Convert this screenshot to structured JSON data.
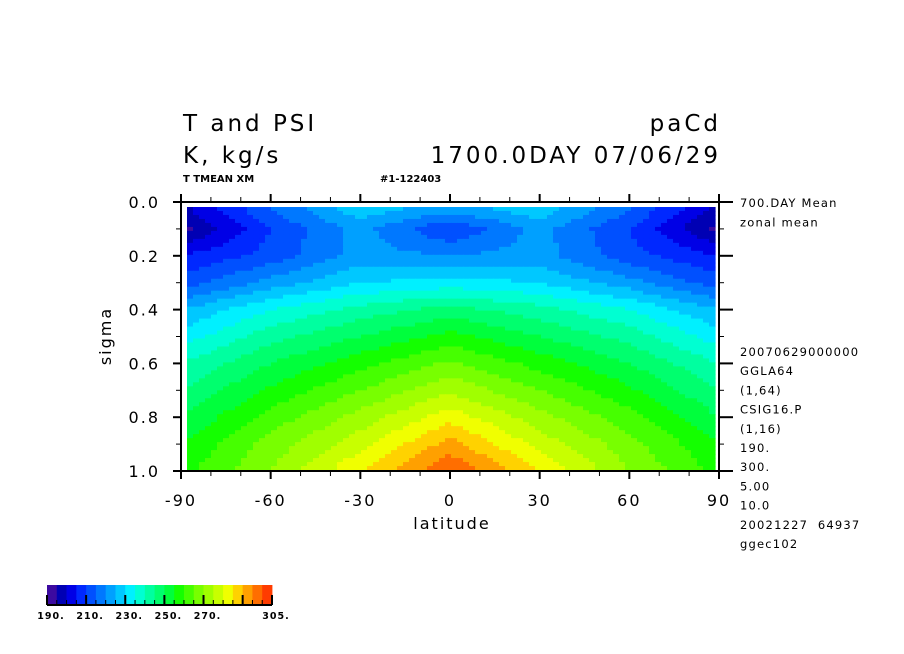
{
  "header": {
    "title_left": "T and PSI",
    "title_right": "paCd",
    "units": "K, kg/s",
    "time": "1700.0DAY 07/06/29",
    "var_label": "T TMEAN XM",
    "run_id": "#1-122403"
  },
  "info_lines": {
    "top": [
      "700.DAY Mean",
      "zonal mean"
    ],
    "bottom": [
      "20070629000000",
      "GGLA64",
      "(1,64)",
      "CSIG16.P",
      "(1,16)",
      "190.",
      "300.",
      "5.00",
      "10.0",
      "20021227  64937",
      "ggec102"
    ]
  },
  "chart_data": {
    "type": "heatmap",
    "title": "T and PSI",
    "xlabel": "latitude",
    "ylabel": "sigma",
    "xlim": [
      -90,
      90
    ],
    "ylim": [
      0.0,
      1.0
    ],
    "y_inverted": true,
    "xticks": [
      "-90",
      "-60",
      "-30",
      "0",
      "30",
      "60",
      "90"
    ],
    "yticks": [
      "0.0",
      "0.2",
      "0.4",
      "0.6",
      "0.8",
      "1.0"
    ],
    "x": [
      -90,
      -60,
      -30,
      0,
      30,
      60,
      90
    ],
    "y": [
      0.03,
      0.1,
      0.2,
      0.3,
      0.4,
      0.5,
      0.6,
      0.7,
      0.8,
      0.9,
      1.0
    ],
    "z": [
      [
        198,
        215,
        228,
        222,
        228,
        215,
        198
      ],
      [
        193,
        210,
        222,
        210,
        222,
        210,
        193
      ],
      [
        205,
        212,
        222,
        220,
        222,
        212,
        205
      ],
      [
        212,
        222,
        230,
        232,
        230,
        222,
        212
      ],
      [
        225,
        235,
        242,
        247,
        242,
        235,
        225
      ],
      [
        232,
        243,
        250,
        257,
        250,
        243,
        232
      ],
      [
        240,
        250,
        258,
        266,
        258,
        250,
        240
      ],
      [
        245,
        256,
        265,
        274,
        265,
        256,
        245
      ],
      [
        250,
        262,
        272,
        283,
        272,
        262,
        250
      ],
      [
        255,
        267,
        278,
        292,
        278,
        267,
        255
      ],
      [
        258,
        270,
        285,
        300,
        285,
        270,
        258
      ]
    ],
    "colorbar": {
      "min": 190,
      "max": 305,
      "interval": 5,
      "tick_labels": [
        "190.",
        "210.",
        "230.",
        "250.",
        "270.",
        "305."
      ],
      "colors": [
        "#3c0aa0",
        "#0000b4",
        "#0000e6",
        "#0028ff",
        "#0050ff",
        "#0078ff",
        "#00a0ff",
        "#00c8ff",
        "#00f0ff",
        "#00ffd2",
        "#00ffa0",
        "#00ff6e",
        "#00ff3c",
        "#14ff00",
        "#46ff00",
        "#78ff00",
        "#a0ff00",
        "#c8ff00",
        "#f0ff00",
        "#ffd200",
        "#ffa000",
        "#ff6e00",
        "#ff3c00"
      ]
    }
  }
}
